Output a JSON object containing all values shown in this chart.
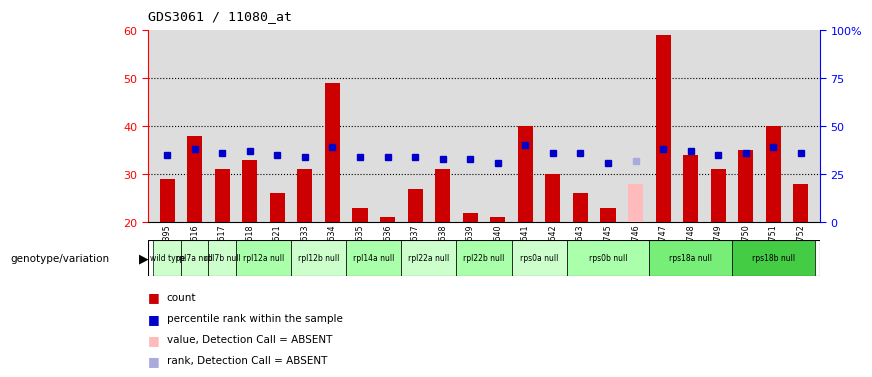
{
  "title": "GDS3061 / 11080_at",
  "samples": [
    "GSM217395",
    "GSM217616",
    "GSM217617",
    "GSM217618",
    "GSM217621",
    "GSM217633",
    "GSM217634",
    "GSM217635",
    "GSM217636",
    "GSM217637",
    "GSM217638",
    "GSM217639",
    "GSM217640",
    "GSM217641",
    "GSM217642",
    "GSM217643",
    "GSM217745",
    "GSM217746",
    "GSM217747",
    "GSM217748",
    "GSM217749",
    "GSM217750",
    "GSM217751",
    "GSM217752"
  ],
  "counts": [
    29,
    38,
    31,
    33,
    26,
    31,
    49,
    23,
    21,
    27,
    31,
    22,
    21,
    40,
    30,
    26,
    23,
    28,
    59,
    34,
    31,
    35,
    40,
    28
  ],
  "percentile_ranks": [
    35,
    38,
    36,
    37,
    35,
    34,
    39,
    34,
    34,
    34,
    33,
    33,
    31,
    40,
    36,
    36,
    31,
    32,
    38,
    37,
    35,
    36,
    39,
    36
  ],
  "absent_count_idx": [
    17
  ],
  "absent_rank_idx": [
    17
  ],
  "genotype_groups": [
    {
      "label": "wild type",
      "start": 0,
      "end": 1,
      "color": "#ccffcc"
    },
    {
      "label": "rpl7a null",
      "start": 1,
      "end": 2,
      "color": "#ccffcc"
    },
    {
      "label": "rpl7b null",
      "start": 2,
      "end": 3,
      "color": "#ccffcc"
    },
    {
      "label": "rpl12a null",
      "start": 3,
      "end": 5,
      "color": "#aaffaa"
    },
    {
      "label": "rpl12b null",
      "start": 5,
      "end": 7,
      "color": "#ccffcc"
    },
    {
      "label": "rpl14a null",
      "start": 7,
      "end": 9,
      "color": "#aaffaa"
    },
    {
      "label": "rpl22a null",
      "start": 9,
      "end": 11,
      "color": "#ccffcc"
    },
    {
      "label": "rpl22b null",
      "start": 11,
      "end": 13,
      "color": "#aaffaa"
    },
    {
      "label": "rps0a null",
      "start": 13,
      "end": 15,
      "color": "#ccffcc"
    },
    {
      "label": "rps0b null",
      "start": 15,
      "end": 18,
      "color": "#aaffaa"
    },
    {
      "label": "rps18a null",
      "start": 18,
      "end": 21,
      "color": "#77ee77"
    },
    {
      "label": "rps18b null",
      "start": 21,
      "end": 24,
      "color": "#44cc44"
    }
  ],
  "ylim": [
    20,
    60
  ],
  "yticks": [
    20,
    30,
    40,
    50,
    60
  ],
  "y2lim": [
    0,
    100
  ],
  "y2ticks": [
    0,
    25,
    50,
    75,
    100
  ],
  "bar_color": "#cc0000",
  "absent_bar_color": "#ffbbbb",
  "rank_color": "#0000cc",
  "absent_rank_color": "#aaaadd",
  "bg_color": "#dddddd",
  "legend_items": [
    {
      "label": "count",
      "color": "#cc0000"
    },
    {
      "label": "percentile rank within the sample",
      "color": "#0000cc"
    },
    {
      "label": "value, Detection Call = ABSENT",
      "color": "#ffbbbb"
    },
    {
      "label": "rank, Detection Call = ABSENT",
      "color": "#aaaadd"
    }
  ]
}
